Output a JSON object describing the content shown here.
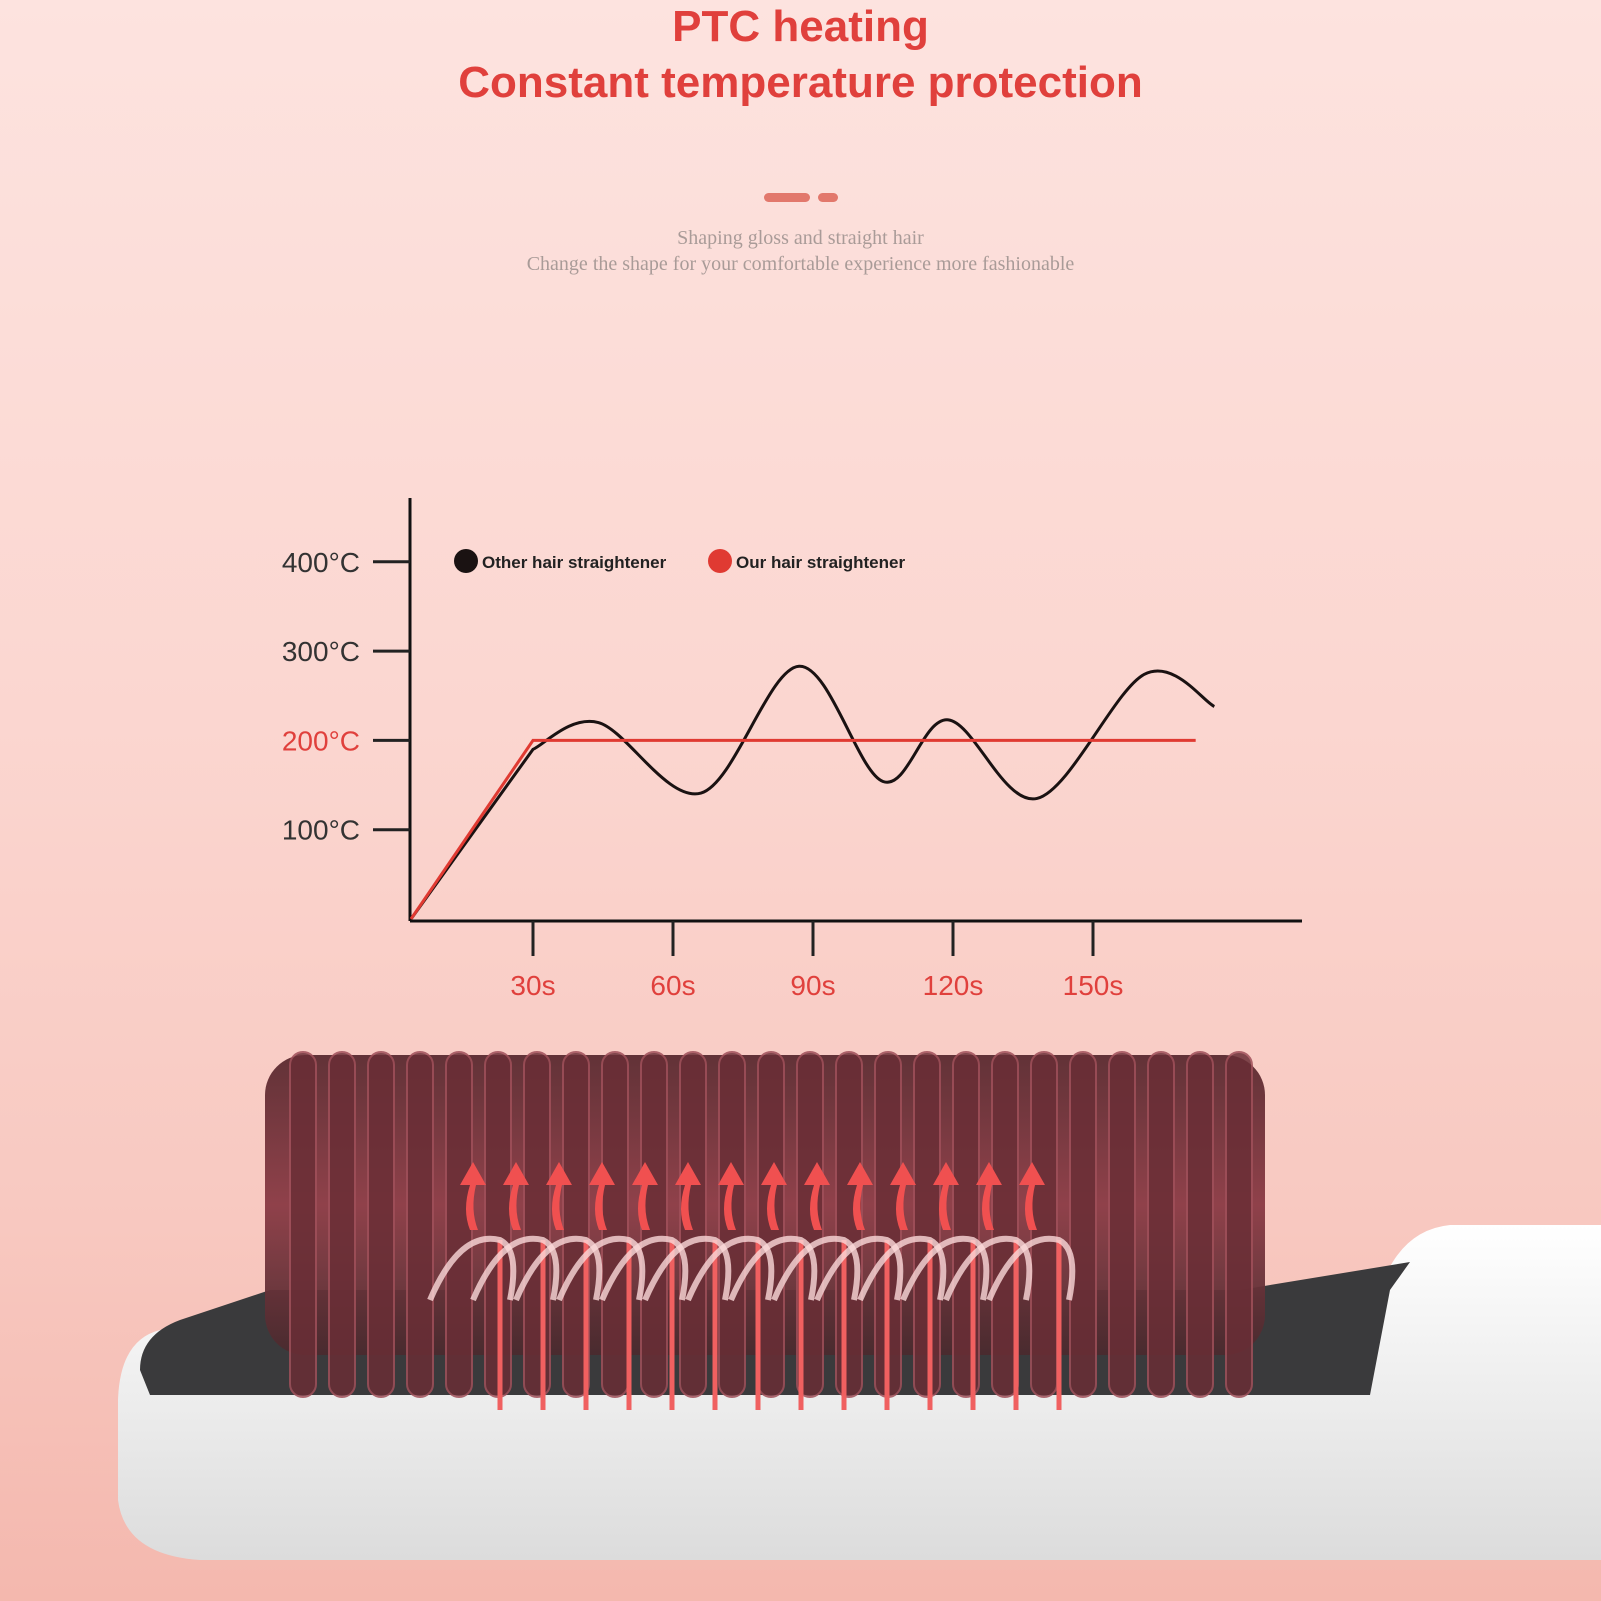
{
  "header": {
    "title_line1": "PTC heating",
    "title_line2": "Constant temperature protection",
    "subtitle_line1": "Shaping gloss and straight hair",
    "subtitle_line2": "Change the shape for your comfortable experience more fashionable"
  },
  "colors": {
    "accent": "#e0403c",
    "other_series": "#1a1212",
    "our_series": "#e03a32",
    "background": "#fbd6d0"
  },
  "chart_data": {
    "type": "line",
    "title": "",
    "xlabel": "",
    "ylabel": "",
    "x_ticks": [
      30,
      60,
      90,
      120,
      150
    ],
    "x_tick_labels": [
      "30s",
      "60s",
      "90s",
      "120s",
      "150s"
    ],
    "y_ticks": [
      100,
      200,
      300,
      400
    ],
    "y_tick_labels": [
      "100°C",
      "200°C",
      "300°C",
      "400°C"
    ],
    "highlight_y_tick": "200°C",
    "xlim": [
      0,
      190
    ],
    "ylim": [
      0,
      450
    ],
    "grid": false,
    "legend_placement": "top-left",
    "series": [
      {
        "name": "Other hair straightener",
        "color": "#1a1212",
        "x": [
          0,
          30,
          44,
          66,
          87,
          105,
          119,
          138,
          161,
          176
        ],
        "y": [
          0,
          190,
          220,
          141,
          283,
          154,
          223,
          135,
          274,
          238
        ]
      },
      {
        "name": "Our hair straightener",
        "color": "#e03a32",
        "x": [
          0,
          30,
          172
        ],
        "y": [
          0,
          200,
          200
        ]
      }
    ]
  }
}
